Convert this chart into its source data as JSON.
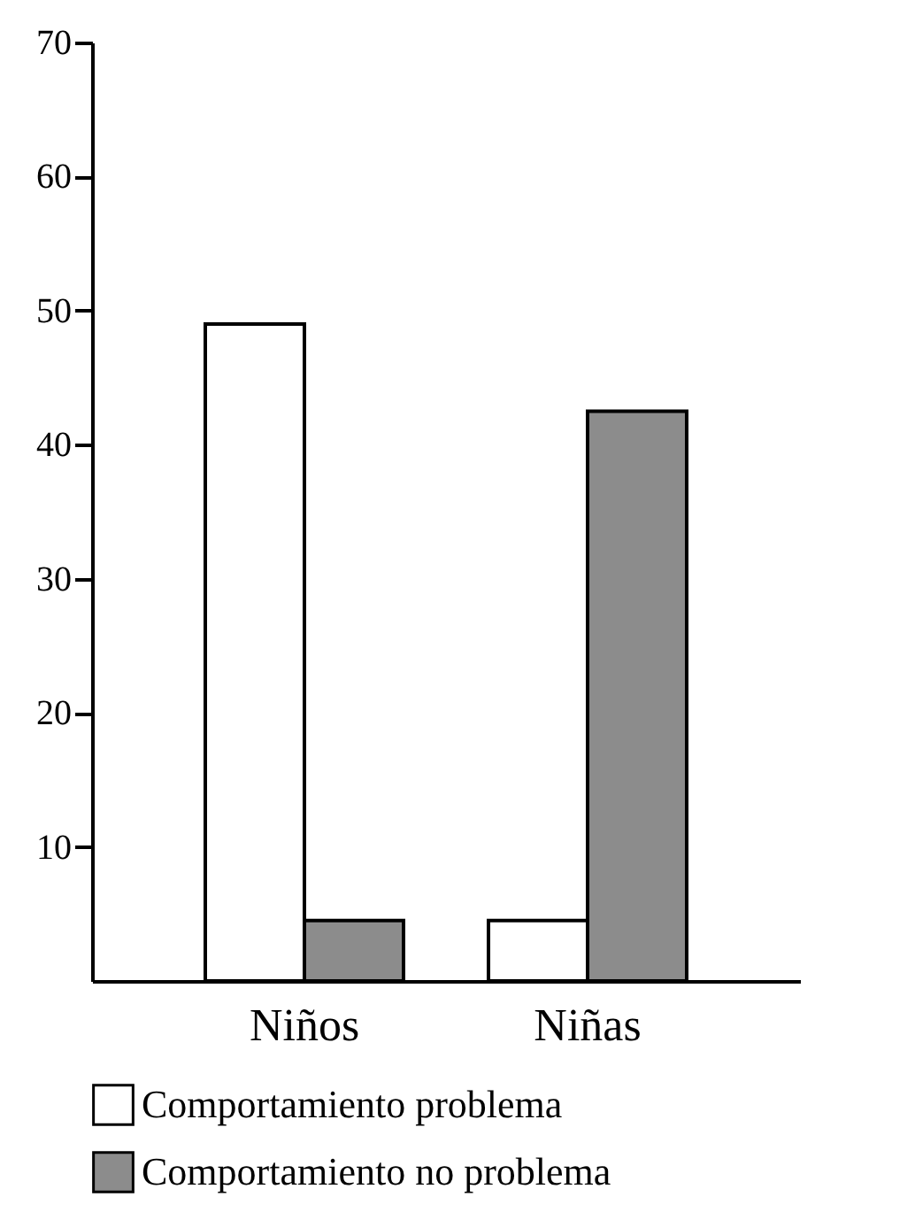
{
  "chart_data": {
    "type": "bar",
    "categories": [
      "Niños",
      "Niñas"
    ],
    "series": [
      {
        "name": "Comportamiento problema",
        "color": "#ffffff",
        "values": [
          49,
          4.5
        ]
      },
      {
        "name": "Comportamiento  no problema",
        "color": "#8c8c8c",
        "values": [
          4.5,
          42.5
        ]
      }
    ],
    "ylim": [
      0,
      70
    ],
    "yticks": [
      10,
      20,
      30,
      40,
      50,
      60,
      70
    ],
    "grid": false,
    "legend": "bottom"
  }
}
